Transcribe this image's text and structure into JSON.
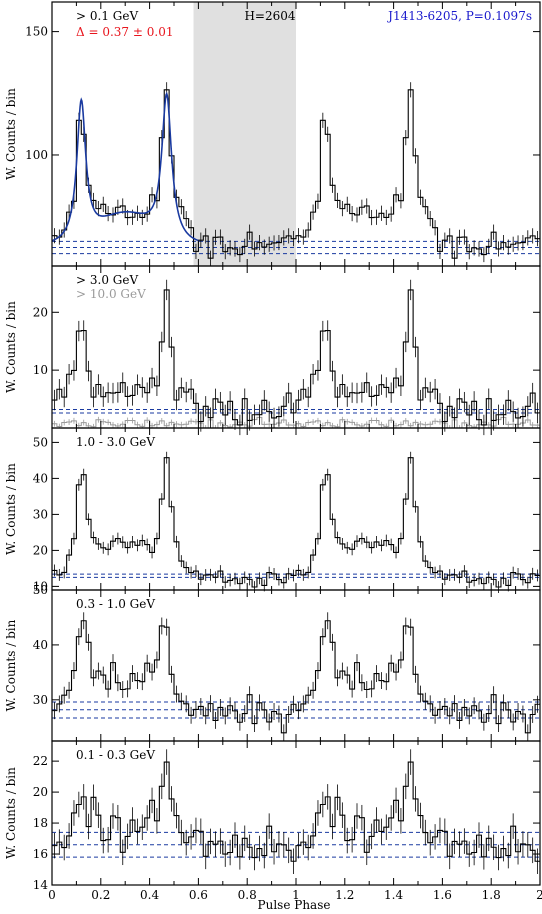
{
  "figure": {
    "xlabel": "Pulse Phase",
    "ylabel": "W. Counts / bin"
  },
  "chart_data": [
    {
      "type": "line",
      "panel": "top",
      "xlim": [
        0,
        2
      ],
      "ylim": [
        55,
        162
      ],
      "yticks": [
        100,
        150
      ],
      "labels": {
        "energy": "> 0.1 GeV",
        "delta": "Δ = 0.37 ± 0.01",
        "htest": "H=2604",
        "pulsar": "J1413-6205, P=0.1097s"
      },
      "colors": {
        "delta": "#e8141c",
        "pulsar": "#1a1acc",
        "model": "#1a3aa0",
        "shade": "#e0e0e0"
      },
      "shaded_phase": [
        0.58,
        1.0
      ],
      "profile": {
        "base": 64,
        "noise": 2.8,
        "peaks": [
          {
            "phase": 0.12,
            "height": 56,
            "width": 0.022
          },
          {
            "phase": 0.47,
            "height": 58,
            "width": 0.024
          }
        ],
        "bridge": {
          "center": 0.3,
          "height": 12,
          "width": 0.11
        }
      },
      "model_curve": true,
      "background_lines": [
        60,
        62.5,
        65
      ]
    },
    {
      "type": "line",
      "panel": "3-10GeV",
      "xlim": [
        0,
        2
      ],
      "ylim": [
        0,
        28
      ],
      "yticks": [
        10,
        20
      ],
      "labels": {
        "energy": "> 3.0 GeV",
        "energy_high": "> 10.0 GeV"
      },
      "colors": {
        "high": "#9a9a9a"
      },
      "profile": {
        "base": 3,
        "noise": 1.6,
        "peaks": [
          {
            "phase": 0.12,
            "height": 16,
            "width": 0.02
          },
          {
            "phase": 0.47,
            "height": 18,
            "width": 0.022
          }
        ],
        "bridge": {
          "center": 0.3,
          "height": 4,
          "width": 0.1
        }
      },
      "secondary_profile": {
        "base": 0.8,
        "noise": 0.5
      },
      "background_lines": [
        2.6,
        3.2
      ]
    },
    {
      "type": "line",
      "panel": "1-3GeV",
      "xlim": [
        0,
        2
      ],
      "ylim": [
        9,
        54
      ],
      "yticks": [
        10,
        20,
        30,
        40,
        50
      ],
      "labels": {
        "energy": "1.0 - 3.0 GeV"
      },
      "profile": {
        "base": 12.8,
        "noise": 1.5,
        "peaks": [
          {
            "phase": 0.12,
            "height": 30,
            "width": 0.02
          },
          {
            "phase": 0.47,
            "height": 30,
            "width": 0.022
          }
        ],
        "bridge": {
          "center": 0.3,
          "height": 9,
          "width": 0.11
        }
      },
      "background_lines": [
        12.5,
        13.4
      ]
    },
    {
      "type": "line",
      "panel": "0.3-1GeV",
      "xlim": [
        0,
        2
      ],
      "ylim": [
        22.5,
        50
      ],
      "yticks": [
        30,
        40,
        50
      ],
      "labels": {
        "energy": "0.3 - 1.0 GeV"
      },
      "profile": {
        "base": 27.5,
        "noise": 1.4,
        "peaks": [
          {
            "phase": 0.13,
            "height": 17,
            "width": 0.03
          },
          {
            "phase": 0.46,
            "height": 14,
            "width": 0.032
          }
        ],
        "bridge": {
          "center": 0.3,
          "height": 5,
          "width": 0.11
        }
      },
      "background_lines": [
        26.7,
        28.2,
        29.6
      ]
    },
    {
      "type": "line",
      "panel": "0.1-0.3GeV",
      "xlim": [
        0,
        2
      ],
      "ylim": [
        14,
        23.3
      ],
      "yticks": [
        14,
        16,
        18,
        20,
        22
      ],
      "labels": {
        "energy": "0.1 - 0.3 GeV"
      },
      "profile": {
        "base": 16.5,
        "noise": 0.75,
        "peaks": [
          {
            "phase": 0.12,
            "height": 3.2,
            "width": 0.035
          },
          {
            "phase": 0.46,
            "height": 3.8,
            "width": 0.035
          }
        ],
        "bridge": {
          "center": 0.3,
          "height": 1.0,
          "width": 0.12
        }
      },
      "background_lines": [
        15.8,
        16.6,
        17.4
      ]
    }
  ],
  "xticks": [
    "0",
    "0.2",
    "0.4",
    "0.6",
    "0.8",
    "1",
    "1.2",
    "1.4",
    "1.6",
    "1.8",
    "2"
  ]
}
